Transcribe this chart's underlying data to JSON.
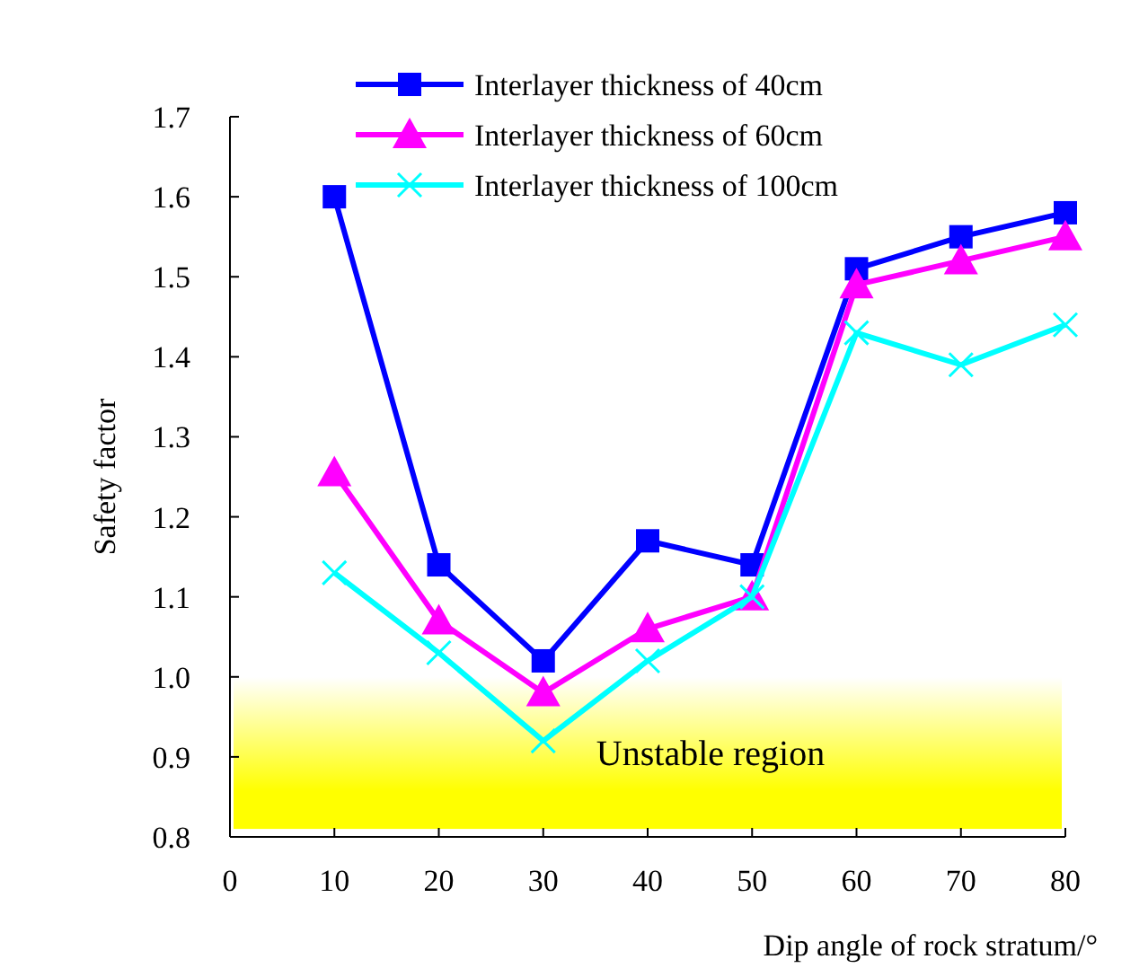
{
  "chart_data": {
    "type": "line",
    "xlabel": "Dip angle of rock stratum/°",
    "ylabel": "Safety factor",
    "x": [
      10,
      20,
      30,
      40,
      50,
      60,
      70,
      80
    ],
    "series": [
      {
        "name": "Interlayer thickness of 40cm",
        "color": "#0000ff",
        "marker": "square",
        "values": [
          1.6,
          1.14,
          1.02,
          1.17,
          1.14,
          1.51,
          1.55,
          1.58
        ]
      },
      {
        "name": "Interlayer thickness of 60cm",
        "color": "#ff00ff",
        "marker": "triangle",
        "values": [
          1.255,
          1.07,
          0.98,
          1.06,
          1.1,
          1.49,
          1.52,
          1.55
        ]
      },
      {
        "name": "Interlayer thickness of 100cm",
        "color": "#00ffff",
        "marker": "cross",
        "values": [
          1.13,
          1.03,
          0.92,
          1.02,
          1.1,
          1.43,
          1.39,
          1.44
        ]
      }
    ],
    "xlim": [
      0,
      80
    ],
    "xticks": [
      0,
      10,
      20,
      30,
      40,
      50,
      60,
      70,
      80
    ],
    "ylim": [
      0.8,
      1.7
    ],
    "yticks": [
      {
        "value": 0.8,
        "label": "0.8"
      },
      {
        "value": 0.9,
        "label": "0.9"
      },
      {
        "value": 1.0,
        "label": "1.0"
      },
      {
        "value": 1.1,
        "label": "1.1"
      },
      {
        "value": 1.2,
        "label": "1.2"
      },
      {
        "value": 1.3,
        "label": "1.3"
      },
      {
        "value": 1.4,
        "label": "1.4"
      },
      {
        "value": 1.5,
        "label": "1.5"
      },
      {
        "value": 1.6,
        "label": "1.6"
      },
      {
        "value": 1.7,
        "label": "1.7"
      }
    ],
    "bands": [
      {
        "axis": "y",
        "from": 0.81,
        "to": 1.0,
        "label": "Unstable region",
        "color": "#ffff00"
      }
    ],
    "grid": false,
    "legend": "top",
    "line_style": "solid"
  }
}
